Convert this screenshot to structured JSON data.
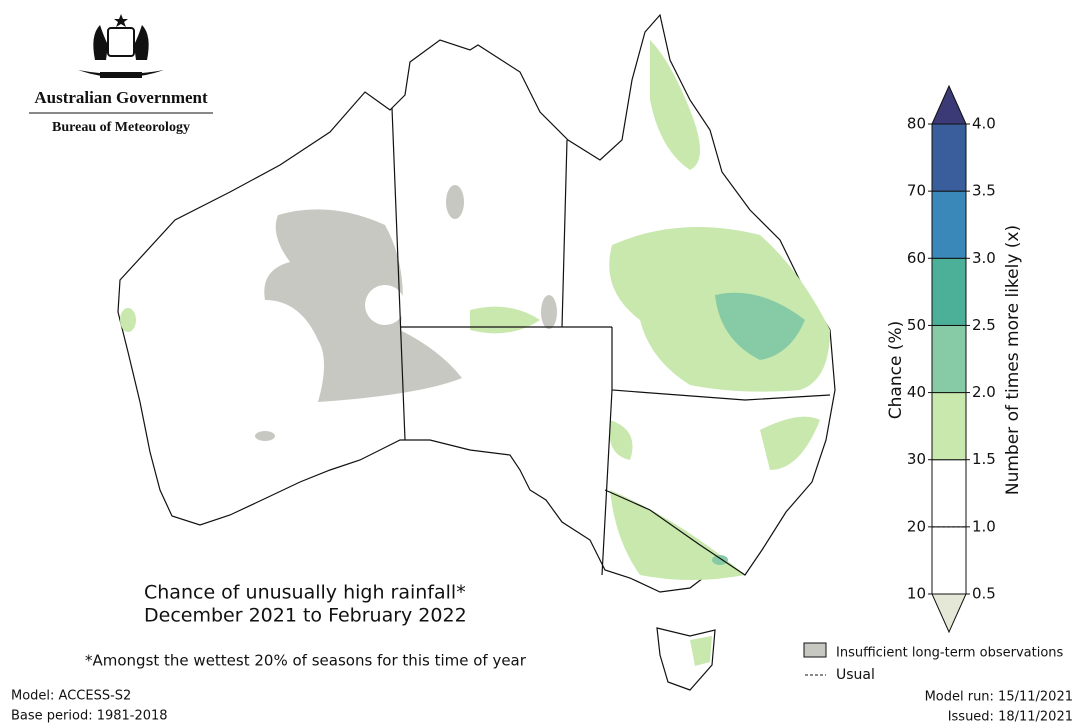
{
  "header": {
    "government": "Australian Government",
    "agency": "Bureau of Meteorology"
  },
  "map": {
    "title_line1": "Chance of unusually high rainfall*",
    "title_line2": "December 2021 to February 2022",
    "footnote": "*Amongst the wettest 20% of seasons for this time of year"
  },
  "legend": {
    "insufficient": "Insufficient long-term observations",
    "insufficient_color": "#c8c8c2",
    "usual": "Usual"
  },
  "colorbar": {
    "ylabel": "Chance (%)",
    "y2label": "Number of times more likely (x)",
    "ylim": [
      10,
      80
    ],
    "yticks": [
      10,
      20,
      30,
      40,
      50,
      60,
      70,
      80
    ],
    "y2lim": [
      0.5,
      4
    ],
    "y2ticks": [
      0.5,
      {
        "value": 1,
        "label": "1.0"
      },
      1.5,
      {
        "value": 2,
        "label": "2.0"
      },
      2.5,
      {
        "value": 3,
        "label": "3.0"
      },
      3.5,
      {
        "value": 4,
        "label": "4.0"
      }
    ],
    "colors": [
      "#ffffff",
      "#ffffff",
      "#c9e8ad",
      "#86cba5",
      "#4caf98",
      "#3a88b9",
      "#3a5e9b"
    ],
    "extend_top": "#3b3a77",
    "extend_bottom": "#e5e8d6",
    "usual": 20
  },
  "footer": {
    "model": "Model: ACCESS-S2",
    "base_period": "Base period: 1981-2018",
    "model_run": "Model run: 15/11/2021",
    "issued": "Issued: 18/11/2021"
  }
}
